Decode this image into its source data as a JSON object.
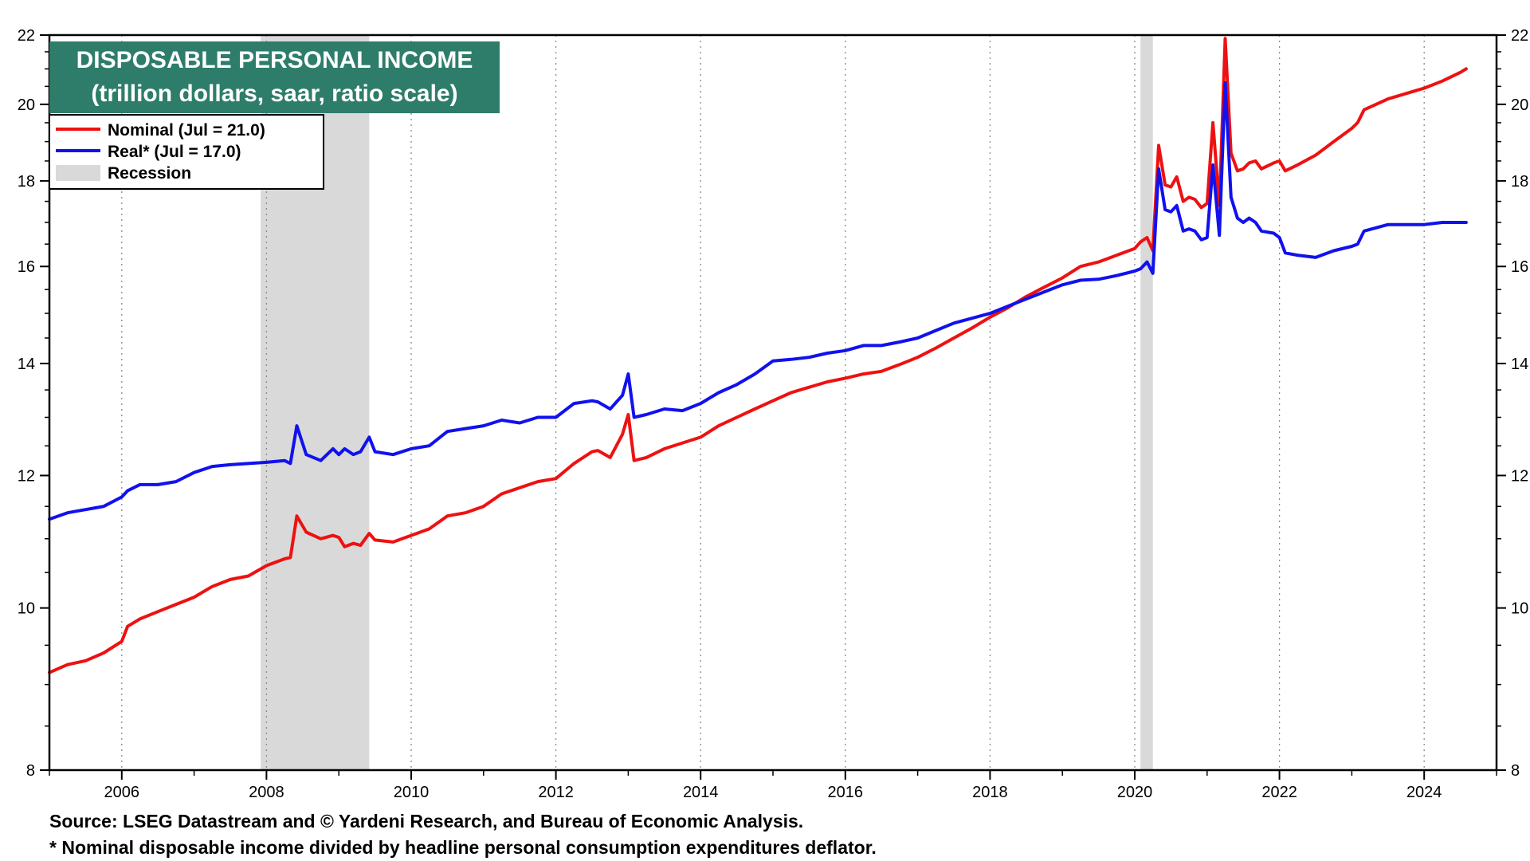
{
  "colors": {
    "nominal": "#ee1111",
    "real": "#1111ee",
    "recession": "#d9d9d9",
    "title_bg": "#2e7d6b"
  },
  "footnotes": {
    "source": "Source: LSEG Datastream and © Yardeni Research, and Bureau of Economic Analysis.",
    "note": "* Nominal disposable income divided by headline personal consumption expenditures deflator."
  },
  "chart_data": {
    "type": "line",
    "title": "DISPOSABLE PERSONAL INCOME",
    "subtitle": "(trillion dollars, saar, ratio scale)",
    "y_scale": "log",
    "ylim": [
      8,
      22
    ],
    "xlim": [
      2005.0,
      2025.0
    ],
    "y_ticks": [
      8,
      10,
      12,
      14,
      16,
      18,
      20,
      22
    ],
    "x_ticks": [
      2006,
      2008,
      2010,
      2012,
      2014,
      2016,
      2018,
      2020,
      2022,
      2024
    ],
    "x_tick_labels": [
      "2006",
      "2008",
      "2010",
      "2012",
      "2014",
      "2016",
      "2018",
      "2020",
      "2022",
      "2024"
    ],
    "y_tick_labels": [
      "8",
      "10",
      "12",
      "14",
      "16",
      "18",
      "20",
      "22"
    ],
    "legend": [
      {
        "label": "Nominal (Jul = 21.0)",
        "key": "nominal",
        "kind": "line"
      },
      {
        "label": "Real* (Jul = 17.0)",
        "key": "real",
        "kind": "line"
      },
      {
        "label": "Recession",
        "key": "recession",
        "kind": "box"
      }
    ],
    "legend_position": "top-left",
    "recessions": [
      [
        2007.92,
        2009.42
      ],
      [
        2020.08,
        2020.25
      ]
    ],
    "series": [
      {
        "name": "Nominal",
        "key": "nominal",
        "points": [
          [
            2005.0,
            9.15
          ],
          [
            2005.25,
            9.25
          ],
          [
            2005.5,
            9.3
          ],
          [
            2005.75,
            9.4
          ],
          [
            2006.0,
            9.55
          ],
          [
            2006.08,
            9.75
          ],
          [
            2006.25,
            9.85
          ],
          [
            2006.5,
            9.95
          ],
          [
            2006.75,
            10.05
          ],
          [
            2007.0,
            10.15
          ],
          [
            2007.25,
            10.3
          ],
          [
            2007.5,
            10.4
          ],
          [
            2007.75,
            10.45
          ],
          [
            2008.0,
            10.6
          ],
          [
            2008.25,
            10.7
          ],
          [
            2008.33,
            10.72
          ],
          [
            2008.42,
            11.35
          ],
          [
            2008.55,
            11.1
          ],
          [
            2008.75,
            11.0
          ],
          [
            2008.92,
            11.05
          ],
          [
            2009.0,
            11.02
          ],
          [
            2009.08,
            10.88
          ],
          [
            2009.2,
            10.93
          ],
          [
            2009.3,
            10.9
          ],
          [
            2009.42,
            11.08
          ],
          [
            2009.5,
            10.98
          ],
          [
            2009.75,
            10.95
          ],
          [
            2010.0,
            11.05
          ],
          [
            2010.25,
            11.15
          ],
          [
            2010.5,
            11.35
          ],
          [
            2010.75,
            11.4
          ],
          [
            2011.0,
            11.5
          ],
          [
            2011.25,
            11.7
          ],
          [
            2011.5,
            11.8
          ],
          [
            2011.75,
            11.9
          ],
          [
            2012.0,
            11.95
          ],
          [
            2012.25,
            12.2
          ],
          [
            2012.5,
            12.4
          ],
          [
            2012.58,
            12.42
          ],
          [
            2012.75,
            12.3
          ],
          [
            2012.92,
            12.7
          ],
          [
            2013.0,
            13.05
          ],
          [
            2013.08,
            12.25
          ],
          [
            2013.25,
            12.3
          ],
          [
            2013.5,
            12.45
          ],
          [
            2013.75,
            12.55
          ],
          [
            2014.0,
            12.65
          ],
          [
            2014.25,
            12.85
          ],
          [
            2014.5,
            13.0
          ],
          [
            2014.75,
            13.15
          ],
          [
            2015.0,
            13.3
          ],
          [
            2015.25,
            13.45
          ],
          [
            2015.5,
            13.55
          ],
          [
            2015.75,
            13.65
          ],
          [
            2016.0,
            13.72
          ],
          [
            2016.25,
            13.8
          ],
          [
            2016.5,
            13.85
          ],
          [
            2016.75,
            13.98
          ],
          [
            2017.0,
            14.12
          ],
          [
            2017.25,
            14.3
          ],
          [
            2017.5,
            14.5
          ],
          [
            2017.75,
            14.7
          ],
          [
            2018.0,
            14.92
          ],
          [
            2018.25,
            15.12
          ],
          [
            2018.5,
            15.35
          ],
          [
            2018.75,
            15.55
          ],
          [
            2019.0,
            15.75
          ],
          [
            2019.25,
            16.0
          ],
          [
            2019.5,
            16.1
          ],
          [
            2019.75,
            16.25
          ],
          [
            2020.0,
            16.4
          ],
          [
            2020.08,
            16.55
          ],
          [
            2020.17,
            16.65
          ],
          [
            2020.25,
            16.35
          ],
          [
            2020.33,
            18.9
          ],
          [
            2020.42,
            17.9
          ],
          [
            2020.5,
            17.85
          ],
          [
            2020.58,
            18.1
          ],
          [
            2020.67,
            17.5
          ],
          [
            2020.75,
            17.6
          ],
          [
            2020.83,
            17.55
          ],
          [
            2020.92,
            17.35
          ],
          [
            2021.0,
            17.45
          ],
          [
            2021.08,
            19.5
          ],
          [
            2021.17,
            17.4
          ],
          [
            2021.25,
            21.9
          ],
          [
            2021.33,
            18.7
          ],
          [
            2021.42,
            18.25
          ],
          [
            2021.5,
            18.3
          ],
          [
            2021.58,
            18.45
          ],
          [
            2021.67,
            18.5
          ],
          [
            2021.75,
            18.3
          ],
          [
            2021.92,
            18.45
          ],
          [
            2022.0,
            18.5
          ],
          [
            2022.08,
            18.25
          ],
          [
            2022.25,
            18.4
          ],
          [
            2022.5,
            18.65
          ],
          [
            2022.75,
            19.0
          ],
          [
            2023.0,
            19.35
          ],
          [
            2023.08,
            19.5
          ],
          [
            2023.17,
            19.85
          ],
          [
            2023.5,
            20.15
          ],
          [
            2023.75,
            20.3
          ],
          [
            2024.0,
            20.45
          ],
          [
            2024.25,
            20.65
          ],
          [
            2024.5,
            20.9
          ],
          [
            2024.58,
            21.0
          ]
        ]
      },
      {
        "name": "Real*",
        "key": "real",
        "points": [
          [
            2005.0,
            11.3
          ],
          [
            2005.25,
            11.4
          ],
          [
            2005.5,
            11.45
          ],
          [
            2005.75,
            11.5
          ],
          [
            2006.0,
            11.65
          ],
          [
            2006.08,
            11.75
          ],
          [
            2006.25,
            11.85
          ],
          [
            2006.5,
            11.85
          ],
          [
            2006.75,
            11.9
          ],
          [
            2007.0,
            12.05
          ],
          [
            2007.25,
            12.15
          ],
          [
            2007.5,
            12.18
          ],
          [
            2007.75,
            12.2
          ],
          [
            2008.0,
            12.22
          ],
          [
            2008.25,
            12.25
          ],
          [
            2008.33,
            12.2
          ],
          [
            2008.42,
            12.85
          ],
          [
            2008.55,
            12.35
          ],
          [
            2008.75,
            12.25
          ],
          [
            2008.92,
            12.45
          ],
          [
            2009.0,
            12.35
          ],
          [
            2009.08,
            12.45
          ],
          [
            2009.2,
            12.35
          ],
          [
            2009.3,
            12.4
          ],
          [
            2009.42,
            12.65
          ],
          [
            2009.5,
            12.4
          ],
          [
            2009.75,
            12.35
          ],
          [
            2010.0,
            12.45
          ],
          [
            2010.25,
            12.5
          ],
          [
            2010.5,
            12.75
          ],
          [
            2010.75,
            12.8
          ],
          [
            2011.0,
            12.85
          ],
          [
            2011.25,
            12.95
          ],
          [
            2011.5,
            12.9
          ],
          [
            2011.75,
            13.0
          ],
          [
            2012.0,
            13.0
          ],
          [
            2012.25,
            13.25
          ],
          [
            2012.5,
            13.3
          ],
          [
            2012.58,
            13.28
          ],
          [
            2012.75,
            13.15
          ],
          [
            2012.92,
            13.4
          ],
          [
            2013.0,
            13.8
          ],
          [
            2013.08,
            13.0
          ],
          [
            2013.25,
            13.05
          ],
          [
            2013.5,
            13.15
          ],
          [
            2013.75,
            13.12
          ],
          [
            2014.0,
            13.25
          ],
          [
            2014.25,
            13.45
          ],
          [
            2014.5,
            13.6
          ],
          [
            2014.75,
            13.8
          ],
          [
            2015.0,
            14.05
          ],
          [
            2015.25,
            14.08
          ],
          [
            2015.5,
            14.12
          ],
          [
            2015.75,
            14.2
          ],
          [
            2016.0,
            14.25
          ],
          [
            2016.25,
            14.35
          ],
          [
            2016.5,
            14.35
          ],
          [
            2016.75,
            14.42
          ],
          [
            2017.0,
            14.5
          ],
          [
            2017.25,
            14.65
          ],
          [
            2017.5,
            14.8
          ],
          [
            2017.75,
            14.9
          ],
          [
            2018.0,
            15.0
          ],
          [
            2018.25,
            15.15
          ],
          [
            2018.5,
            15.3
          ],
          [
            2018.75,
            15.45
          ],
          [
            2019.0,
            15.6
          ],
          [
            2019.25,
            15.7
          ],
          [
            2019.5,
            15.72
          ],
          [
            2019.75,
            15.8
          ],
          [
            2020.0,
            15.9
          ],
          [
            2020.08,
            15.95
          ],
          [
            2020.17,
            16.1
          ],
          [
            2020.25,
            15.85
          ],
          [
            2020.33,
            18.3
          ],
          [
            2020.42,
            17.3
          ],
          [
            2020.5,
            17.25
          ],
          [
            2020.58,
            17.4
          ],
          [
            2020.67,
            16.8
          ],
          [
            2020.75,
            16.85
          ],
          [
            2020.83,
            16.8
          ],
          [
            2020.92,
            16.6
          ],
          [
            2021.0,
            16.65
          ],
          [
            2021.08,
            18.4
          ],
          [
            2021.17,
            16.7
          ],
          [
            2021.25,
            20.6
          ],
          [
            2021.33,
            17.6
          ],
          [
            2021.42,
            17.1
          ],
          [
            2021.5,
            17.0
          ],
          [
            2021.58,
            17.1
          ],
          [
            2021.67,
            17.0
          ],
          [
            2021.75,
            16.8
          ],
          [
            2021.92,
            16.75
          ],
          [
            2022.0,
            16.65
          ],
          [
            2022.08,
            16.3
          ],
          [
            2022.25,
            16.25
          ],
          [
            2022.5,
            16.2
          ],
          [
            2022.75,
            16.35
          ],
          [
            2023.0,
            16.45
          ],
          [
            2023.08,
            16.5
          ],
          [
            2023.17,
            16.8
          ],
          [
            2023.5,
            16.95
          ],
          [
            2023.75,
            16.95
          ],
          [
            2024.0,
            16.95
          ],
          [
            2024.25,
            17.0
          ],
          [
            2024.5,
            17.0
          ],
          [
            2024.58,
            17.0
          ]
        ]
      }
    ]
  }
}
